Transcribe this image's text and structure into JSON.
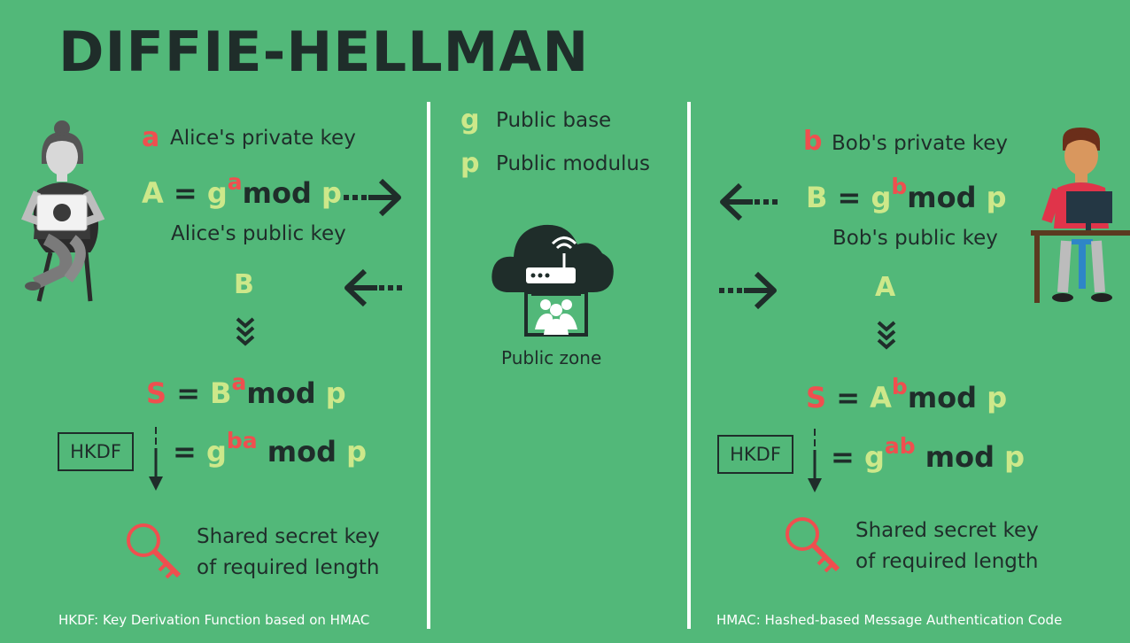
{
  "title": "DIFFIE-HELLMAN",
  "center": {
    "g_symbol": "g",
    "g_label": "Public base",
    "p_symbol": "p",
    "p_label": "Public modulus",
    "zone_label": "Public zone"
  },
  "alice": {
    "priv_symbol": "a",
    "priv_label": "Alice's private key",
    "pub_eq": {
      "lhs": "A",
      "eq": "=",
      "base": "g",
      "exp": "a",
      "mod": "mod",
      "p": "p"
    },
    "pub_label": "Alice's public key",
    "received": "B",
    "secret_eq": {
      "lhs": "S",
      "eq": "=",
      "base": "B",
      "exp": "a",
      "mod": "mod",
      "p": "p"
    },
    "final_eq": {
      "eq": "=",
      "base": "g",
      "exp": "ba",
      "mod": "mod",
      "p": "p"
    },
    "hkdf": "HKDF",
    "result_line1": "Shared secret key",
    "result_line2": "of required length"
  },
  "bob": {
    "priv_symbol": "b",
    "priv_label": "Bob's private key",
    "pub_eq": {
      "lhs": "B",
      "eq": "=",
      "base": "g",
      "exp": "b",
      "mod": "mod",
      "p": "p"
    },
    "pub_label": "Bob's public key",
    "received": "A",
    "secret_eq": {
      "lhs": "S",
      "eq": "=",
      "base": "A",
      "exp": "b",
      "mod": "mod",
      "p": "p"
    },
    "final_eq": {
      "eq": "=",
      "base": "g",
      "exp": "ab",
      "mod": "mod",
      "p": "p"
    },
    "hkdf": "HKDF",
    "result_line1": "Shared secret key",
    "result_line2": "of required length"
  },
  "footer_left": "HKDF: Key Derivation Function based on HMAC",
  "footer_right": "HMAC: Hashed-based Message Authentication Code",
  "colors": {
    "background": "#52b879",
    "dark": "#1f2d2a",
    "red": "#ef4f4f",
    "lime": "#cde88a",
    "white": "#ffffff"
  }
}
